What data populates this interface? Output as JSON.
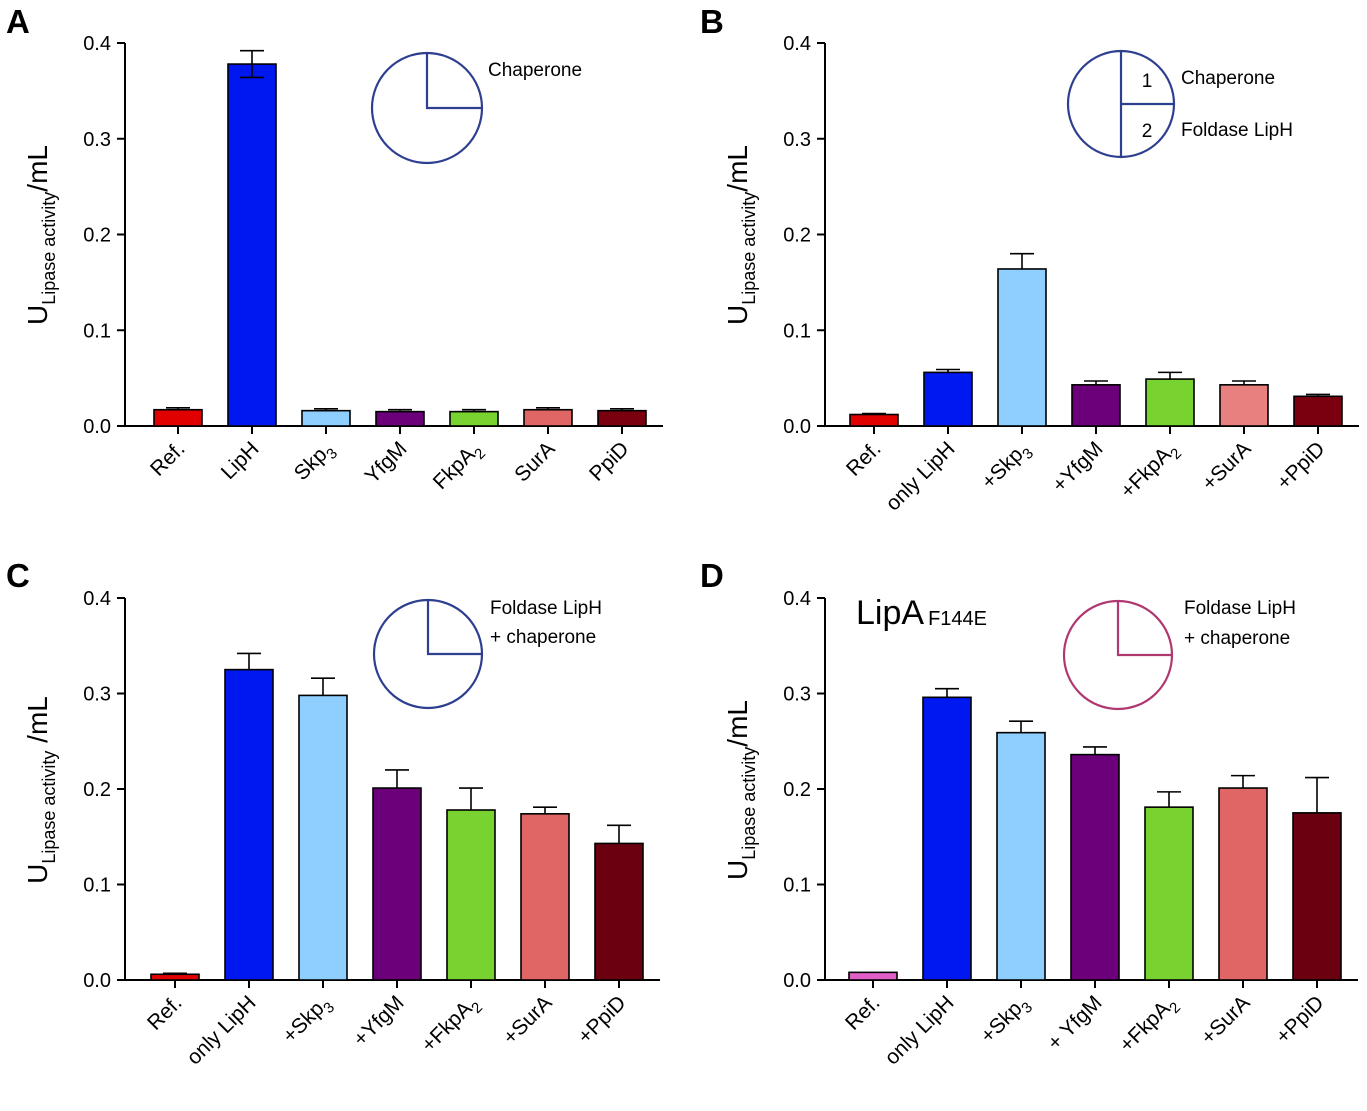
{
  "chart_data": [
    {
      "panel": "A",
      "type": "bar",
      "ylabel": {
        "main": "U",
        "sub": "Lipase activity",
        "unit": "/mL"
      },
      "ylim": [
        0,
        0.4
      ],
      "yticks": [
        "0.0",
        "0.1",
        "0.2",
        "0.3",
        "0.4"
      ],
      "categories": [
        {
          "text": "Ref."
        },
        {
          "text": "LipH"
        },
        {
          "text": "Skp",
          "sub": "3"
        },
        {
          "text": "YfgM"
        },
        {
          "text": "FkpA",
          "sub": "2"
        },
        {
          "text": "SurA"
        },
        {
          "text": "PpiD"
        }
      ],
      "values": [
        0.017,
        0.378,
        0.016,
        0.015,
        0.015,
        0.017,
        0.016
      ],
      "errors": [
        0.002,
        0.014,
        0.002,
        0.002,
        0.002,
        0.002,
        0.002
      ],
      "colors": [
        "#e00000",
        "#0018f0",
        "#8ecfff",
        "#6b007a",
        "#78d22f",
        "#e06666",
        "#7a0010"
      ],
      "legend": {
        "style": "quarter",
        "color": "#2f3f8f",
        "lines": [
          "Chaperone"
        ]
      }
    },
    {
      "panel": "B",
      "type": "bar",
      "ylabel": {
        "main": "U",
        "sub": "Lipase activity",
        "unit": "/mL"
      },
      "ylim": [
        0,
        0.4
      ],
      "yticks": [
        "0.0",
        "0.1",
        "0.2",
        "0.3",
        "0.4"
      ],
      "categories": [
        {
          "text": "Ref."
        },
        {
          "text": "only LipH"
        },
        {
          "text": "+Skp",
          "sub": "3"
        },
        {
          "text": "+YfgM"
        },
        {
          "text": "+FkpA",
          "sub": "2"
        },
        {
          "text": "+SurA"
        },
        {
          "text": "+PpiD"
        }
      ],
      "values": [
        0.012,
        0.056,
        0.164,
        0.043,
        0.049,
        0.043,
        0.031
      ],
      "errors": [
        0.001,
        0.003,
        0.016,
        0.004,
        0.007,
        0.004,
        0.002
      ],
      "colors": [
        "#e00000",
        "#0018f0",
        "#8ecfff",
        "#6b007a",
        "#78d22f",
        "#e88080",
        "#7a0010"
      ],
      "legend": {
        "style": "split",
        "color": "#2f3f8f",
        "numbers": [
          "1",
          "2"
        ],
        "lines": [
          "Chaperone",
          "Foldase LipH"
        ]
      }
    },
    {
      "panel": "C",
      "type": "bar",
      "ylabel": {
        "main": "U",
        "sub": "Lipase activity",
        "unit": " /mL"
      },
      "ylim": [
        0,
        0.4
      ],
      "yticks": [
        "0.0",
        "0.1",
        "0.2",
        "0.3",
        "0.4"
      ],
      "categories": [
        {
          "text": "Ref."
        },
        {
          "text": "only LipH"
        },
        {
          "text": "+Skp",
          "sub": "3"
        },
        {
          "text": "+YfgM"
        },
        {
          "text": "+FkpA",
          "sub": "2"
        },
        {
          "text": "+SurA"
        },
        {
          "text": "+PpiD"
        }
      ],
      "values": [
        0.006,
        0.325,
        0.298,
        0.201,
        0.178,
        0.174,
        0.143
      ],
      "errors": [
        0.001,
        0.017,
        0.018,
        0.019,
        0.023,
        0.007,
        0.019
      ],
      "colors": [
        "#e00000",
        "#0018f0",
        "#8ecfff",
        "#6b007a",
        "#78d22f",
        "#e06666",
        "#6b0010"
      ],
      "legend": {
        "style": "quarter",
        "color": "#2f3f8f",
        "lines": [
          "Foldase LipH",
          "+ chaperone"
        ]
      }
    },
    {
      "panel": "D",
      "type": "bar",
      "title": {
        "main": "LipA",
        "sub": "F144E"
      },
      "ylabel": {
        "main": "U",
        "sub": "Lipase activity",
        "unit": "/mL"
      },
      "ylim": [
        0,
        0.4
      ],
      "yticks": [
        "0.0",
        "0.1",
        "0.2",
        "0.3",
        "0.4"
      ],
      "categories": [
        {
          "text": "Ref."
        },
        {
          "text": "only LipH"
        },
        {
          "text": "+Skp",
          "sub": "3"
        },
        {
          "text": "+ YfgM"
        },
        {
          "text": "+FkpA",
          "sub": "2"
        },
        {
          "text": "+SurA"
        },
        {
          "text": "+PpiD"
        }
      ],
      "values": [
        0.008,
        0.296,
        0.259,
        0.236,
        0.181,
        0.201,
        0.175
      ],
      "errors": [
        0.0,
        0.009,
        0.012,
        0.008,
        0.016,
        0.013,
        0.037
      ],
      "colors": [
        "#e060c8",
        "#0018f0",
        "#8ecfff",
        "#6b007a",
        "#78d22f",
        "#e06666",
        "#6b0010"
      ],
      "legend": {
        "style": "quarter",
        "color": "#b03870",
        "lines": [
          "Foldase LipH",
          "+ chaperone"
        ]
      }
    }
  ]
}
